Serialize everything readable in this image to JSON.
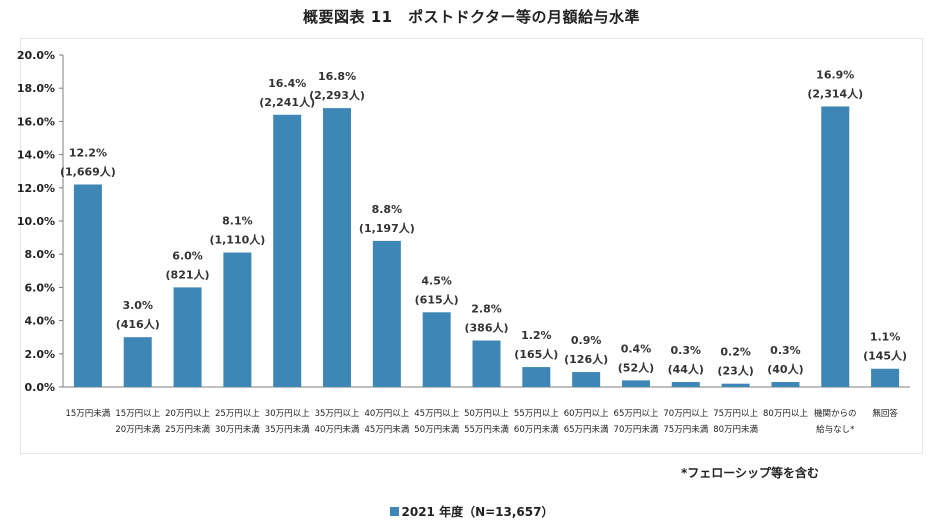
{
  "chart_data": {
    "type": "bar",
    "title": "概要図表 11　ポストドクター等の月額給与水準",
    "categories": [
      [
        "15万円未満"
      ],
      [
        "15万円以上",
        "20万円未満"
      ],
      [
        "20万円以上",
        "25万円未満"
      ],
      [
        "25万円以上",
        "30万円未満"
      ],
      [
        "30万円以上",
        "35万円未満"
      ],
      [
        "35万円以上",
        "40万円未満"
      ],
      [
        "40万円以上",
        "45万円未満"
      ],
      [
        "45万円以上",
        "50万円未満"
      ],
      [
        "50万円以上",
        "55万円未満"
      ],
      [
        "55万円以上",
        "60万円未満"
      ],
      [
        "60万円以上",
        "65万円未満"
      ],
      [
        "65万円以上",
        "70万円未満"
      ],
      [
        "70万円以上",
        "75万円未満"
      ],
      [
        "75万円以上",
        "80万円未満"
      ],
      [
        "80万円以上"
      ],
      [
        "機関からの",
        "給与なし*"
      ],
      [
        "無回答"
      ]
    ],
    "series": [
      {
        "name": "2021 年度（N=13,657）",
        "color": "#3d86b5",
        "values": [
          12.2,
          3.0,
          6.0,
          8.1,
          16.4,
          16.8,
          8.8,
          4.5,
          2.8,
          1.2,
          0.9,
          0.4,
          0.3,
          0.2,
          0.3,
          16.9,
          1.1
        ],
        "value_labels": [
          "12.2%",
          "3.0%",
          "6.0%",
          "8.1%",
          "16.4%",
          "16.8%",
          "8.8%",
          "4.5%",
          "2.8%",
          "1.2%",
          "0.9%",
          "0.4%",
          "0.3%",
          "0.2%",
          "0.3%",
          "16.9%",
          "1.1%"
        ],
        "count_labels": [
          "(1,669人)",
          "(416人)",
          "(821人)",
          "(1,110人)",
          "(2,241人)",
          "(2,293人)",
          "(1,197人)",
          "(615人)",
          "(386人)",
          "(165人)",
          "(126人)",
          "(52人)",
          "(44人)",
          "(23人)",
          "(40人)",
          "(2,314人)",
          "(145人)"
        ]
      }
    ],
    "ylim": [
      0,
      20
    ],
    "yticks": [
      "0.0%",
      "2.0%",
      "4.0%",
      "6.0%",
      "8.0%",
      "10.0%",
      "12.0%",
      "14.0%",
      "16.0%",
      "18.0%",
      "20.0%"
    ],
    "grid": false,
    "legend_position": "bottom-center",
    "note": "*フェローシップ等を含む"
  }
}
